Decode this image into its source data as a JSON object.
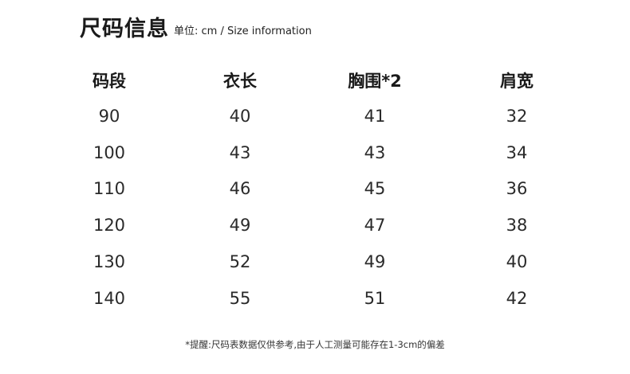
{
  "title": "尺码信息",
  "unit": "单位: cm  / Size information",
  "table": {
    "headers": [
      "码段",
      "衣长",
      "胸围*2",
      "肩宽"
    ],
    "rows": [
      [
        "90",
        "40",
        "41",
        "32"
      ],
      [
        "100",
        "43",
        "43",
        "34"
      ],
      [
        "110",
        "46",
        "45",
        "36"
      ],
      [
        "120",
        "49",
        "47",
        "38"
      ],
      [
        "130",
        "52",
        "49",
        "40"
      ],
      [
        "140",
        "55",
        "51",
        "42"
      ]
    ]
  },
  "note": "*提醒:尺码表数据仅供参考,由于人工测量可能存在1-3cm的偏差"
}
